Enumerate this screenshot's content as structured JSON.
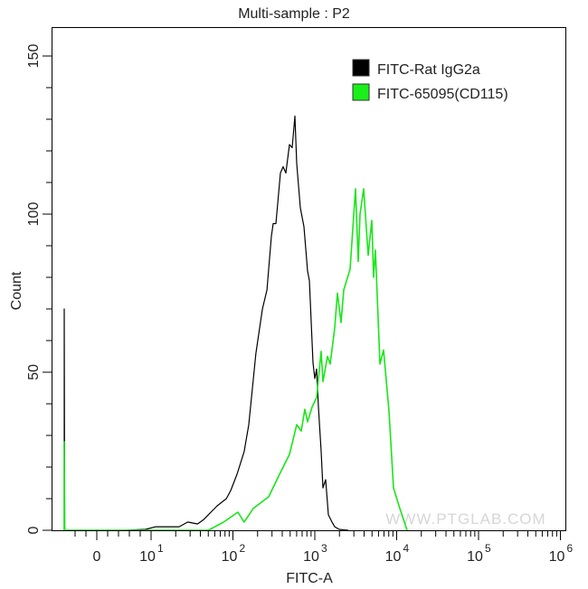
{
  "chart_data": {
    "type": "line",
    "title": "Multi-sample : P2",
    "xlabel": "FITC-A",
    "ylabel": "Count",
    "x_scale": "biexponential (log above 10)",
    "xlim": [
      -150,
      1000000
    ],
    "ylim": [
      0,
      159
    ],
    "grid": false,
    "legend_position": "top-right",
    "x_tick_labels": [
      {
        "value": 0,
        "base": "0",
        "exp": ""
      },
      {
        "value": 10,
        "base": "10",
        "exp": "1"
      },
      {
        "value": 100,
        "base": "10",
        "exp": "2"
      },
      {
        "value": 1000,
        "base": "10",
        "exp": "3"
      },
      {
        "value": 10000,
        "base": "10",
        "exp": "4"
      },
      {
        "value": 100000,
        "base": "10",
        "exp": "5"
      },
      {
        "value": 1000000,
        "base": "10",
        "exp": "6"
      }
    ],
    "y_tick_labels": [
      {
        "value": 0,
        "label": "0"
      },
      {
        "value": 50,
        "label": "50"
      },
      {
        "value": 100,
        "label": "100"
      },
      {
        "value": 150,
        "label": "150"
      }
    ],
    "series": [
      {
        "name": "FITC-Rat IgG2a",
        "color": "#000000",
        "points": [
          [
            -150,
            0
          ],
          [
            -150,
            70
          ],
          [
            -148,
            0
          ],
          [
            1,
            0
          ],
          [
            5,
            0
          ],
          [
            9,
            0.3
          ],
          [
            11.4,
            1.1
          ],
          [
            22,
            1.1
          ],
          [
            28,
            2.6
          ],
          [
            37,
            2
          ],
          [
            44,
            3.4
          ],
          [
            64,
            7.7
          ],
          [
            83,
            10
          ],
          [
            94,
            12.6
          ],
          [
            112,
            17.7
          ],
          [
            137,
            24.9
          ],
          [
            156,
            33.4
          ],
          [
            191,
            56
          ],
          [
            229,
            70
          ],
          [
            260,
            76
          ],
          [
            295,
            93
          ],
          [
            310,
            97
          ],
          [
            335,
            97
          ],
          [
            380,
            113
          ],
          [
            410,
            115
          ],
          [
            443,
            113
          ],
          [
            490,
            122
          ],
          [
            529,
            121
          ],
          [
            571,
            131
          ],
          [
            601,
            116
          ],
          [
            665,
            102
          ],
          [
            736,
            96
          ],
          [
            816,
            82
          ],
          [
            859,
            79
          ],
          [
            951,
            53
          ],
          [
            1000,
            48
          ],
          [
            1052,
            51
          ],
          [
            1107,
            39
          ],
          [
            1195,
            25
          ],
          [
            1257,
            13.4
          ],
          [
            1357,
            16
          ],
          [
            1465,
            4.9
          ],
          [
            1622,
            2.6
          ],
          [
            1750,
            1.1
          ],
          [
            1987,
            0.3
          ],
          [
            2563,
            0
          ]
        ]
      },
      {
        "name": "FITC-65095(CD115)",
        "color": "#19e619",
        "points": [
          [
            -150,
            0
          ],
          [
            -150,
            28
          ],
          [
            -148,
            0
          ],
          [
            18,
            0
          ],
          [
            50,
            0
          ],
          [
            77,
            2.6
          ],
          [
            115,
            5.7
          ],
          [
            137,
            2.6
          ],
          [
            177,
            6.9
          ],
          [
            273,
            10.6
          ],
          [
            380,
            18.3
          ],
          [
            490,
            24
          ],
          [
            601,
            33.4
          ],
          [
            683,
            31.4
          ],
          [
            756,
            38.3
          ],
          [
            816,
            34.3
          ],
          [
            927,
            39
          ],
          [
            1052,
            42
          ],
          [
            1195,
            56.6
          ],
          [
            1257,
            47
          ],
          [
            1429,
            55
          ],
          [
            1542,
            52.6
          ],
          [
            1750,
            64
          ],
          [
            1888,
            75
          ],
          [
            2089,
            65.7
          ],
          [
            2259,
            76
          ],
          [
            2698,
            82.6
          ],
          [
            3141,
            108
          ],
          [
            3388,
            85
          ],
          [
            3565,
            100
          ],
          [
            3951,
            108
          ],
          [
            4487,
            87
          ],
          [
            4966,
            98
          ],
          [
            5227,
            80
          ],
          [
            5495,
            88.6
          ],
          [
            6250,
            52.6
          ],
          [
            6918,
            57
          ],
          [
            8054,
            37.7
          ],
          [
            9142,
            13.4
          ],
          [
            10940,
            6.9
          ],
          [
            13400,
            0
          ]
        ]
      }
    ]
  },
  "watermark": "WWW.PTGLAB.COM"
}
